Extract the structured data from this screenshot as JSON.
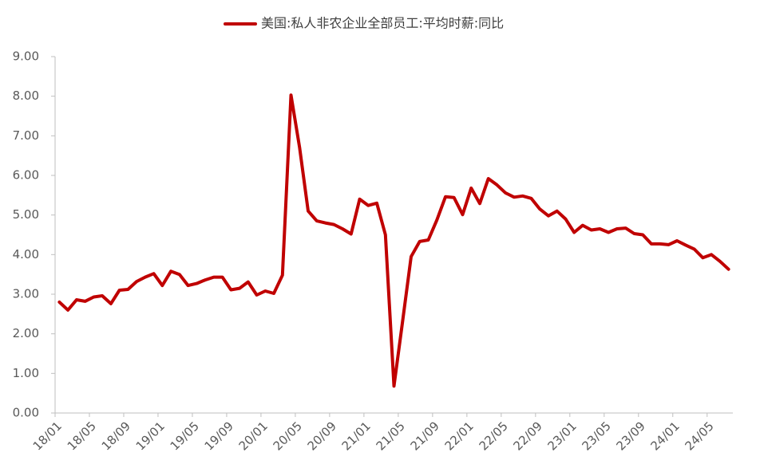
{
  "chart_data": {
    "type": "line",
    "series": [
      {
        "name": "美国:私人非农企业全部员工:平均时薪:同比",
        "color": "#c00000",
        "values": [
          2.8,
          2.6,
          2.86,
          2.82,
          2.93,
          2.96,
          2.76,
          3.1,
          3.12,
          3.32,
          3.43,
          3.52,
          3.22,
          3.58,
          3.5,
          3.22,
          3.27,
          3.36,
          3.43,
          3.43,
          3.11,
          3.15,
          3.31,
          2.98,
          3.08,
          3.02,
          3.48,
          8.03,
          6.7,
          5.1,
          4.85,
          4.8,
          4.76,
          4.65,
          4.52,
          5.4,
          5.24,
          5.3,
          4.5,
          0.68,
          2.3,
          3.95,
          4.33,
          4.37,
          4.87,
          5.46,
          5.44,
          5.01,
          5.68,
          5.29,
          5.92,
          5.76,
          5.56,
          5.45,
          5.48,
          5.42,
          5.15,
          4.98,
          5.1,
          4.9,
          4.56,
          4.74,
          4.62,
          4.65,
          4.56,
          4.65,
          4.67,
          4.53,
          4.5,
          4.27,
          4.27,
          4.25,
          4.35,
          4.24,
          4.14,
          3.92,
          4.0,
          3.83,
          3.63
        ]
      }
    ],
    "categories": [
      "18/01",
      null,
      null,
      null,
      "18/05",
      null,
      null,
      null,
      "18/09",
      null,
      null,
      null,
      "19/01",
      null,
      null,
      null,
      "19/05",
      null,
      null,
      null,
      "19/09",
      null,
      null,
      null,
      "20/01",
      null,
      null,
      null,
      "20/05",
      null,
      null,
      null,
      "20/09",
      null,
      null,
      null,
      "21/01",
      null,
      null,
      null,
      "21/05",
      null,
      null,
      null,
      "21/09",
      null,
      null,
      null,
      "22/01",
      null,
      null,
      null,
      "22/05",
      null,
      null,
      null,
      "22/09",
      null,
      null,
      null,
      "23/01",
      null,
      null,
      null,
      "23/05",
      null,
      null,
      null,
      "23/09",
      null,
      null,
      null,
      "24/01",
      null,
      null,
      null,
      "24/05",
      null,
      null
    ],
    "ylim": [
      0,
      9
    ],
    "yticks": [
      {
        "value": 0,
        "label": "0.00"
      },
      {
        "value": 1,
        "label": "1.00"
      },
      {
        "value": 2,
        "label": "2.00"
      },
      {
        "value": 3,
        "label": "3.00"
      },
      {
        "value": 4,
        "label": "4.00"
      },
      {
        "value": 5,
        "label": "5.00"
      },
      {
        "value": 6,
        "label": "6.00"
      },
      {
        "value": 7,
        "label": "7.00"
      },
      {
        "value": 8,
        "label": "8.00"
      },
      {
        "value": 9,
        "label": "9.00"
      }
    ],
    "grid": false,
    "legend": "top"
  }
}
